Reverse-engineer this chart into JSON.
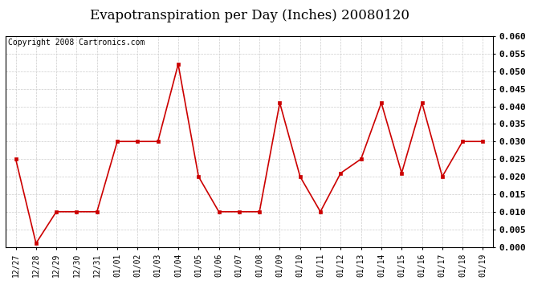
{
  "title": "Evapotranspiration per Day (Inches) 20080120",
  "copyright_text": "Copyright 2008 Cartronics.com",
  "x_labels": [
    "12/27",
    "12/28",
    "12/29",
    "12/30",
    "12/31",
    "01/01",
    "01/02",
    "01/03",
    "01/04",
    "01/05",
    "01/06",
    "01/07",
    "01/08",
    "01/09",
    "01/10",
    "01/11",
    "01/12",
    "01/13",
    "01/14",
    "01/15",
    "01/16",
    "01/17",
    "01/18",
    "01/19"
  ],
  "y_values": [
    0.025,
    0.001,
    0.01,
    0.01,
    0.01,
    0.03,
    0.03,
    0.03,
    0.052,
    0.02,
    0.01,
    0.01,
    0.01,
    0.041,
    0.02,
    0.01,
    0.021,
    0.025,
    0.041,
    0.021,
    0.041,
    0.02,
    0.03,
    0.03
  ],
  "line_color": "#cc0000",
  "marker": "s",
  "marker_size": 3,
  "marker_color": "#cc0000",
  "ylim": [
    0.0,
    0.06
  ],
  "ytick_step": 0.005,
  "background_color": "#ffffff",
  "grid_color": "#cccccc",
  "title_fontsize": 12,
  "copyright_fontsize": 7,
  "tick_label_fontsize": 7,
  "ytick_fontsize": 8
}
